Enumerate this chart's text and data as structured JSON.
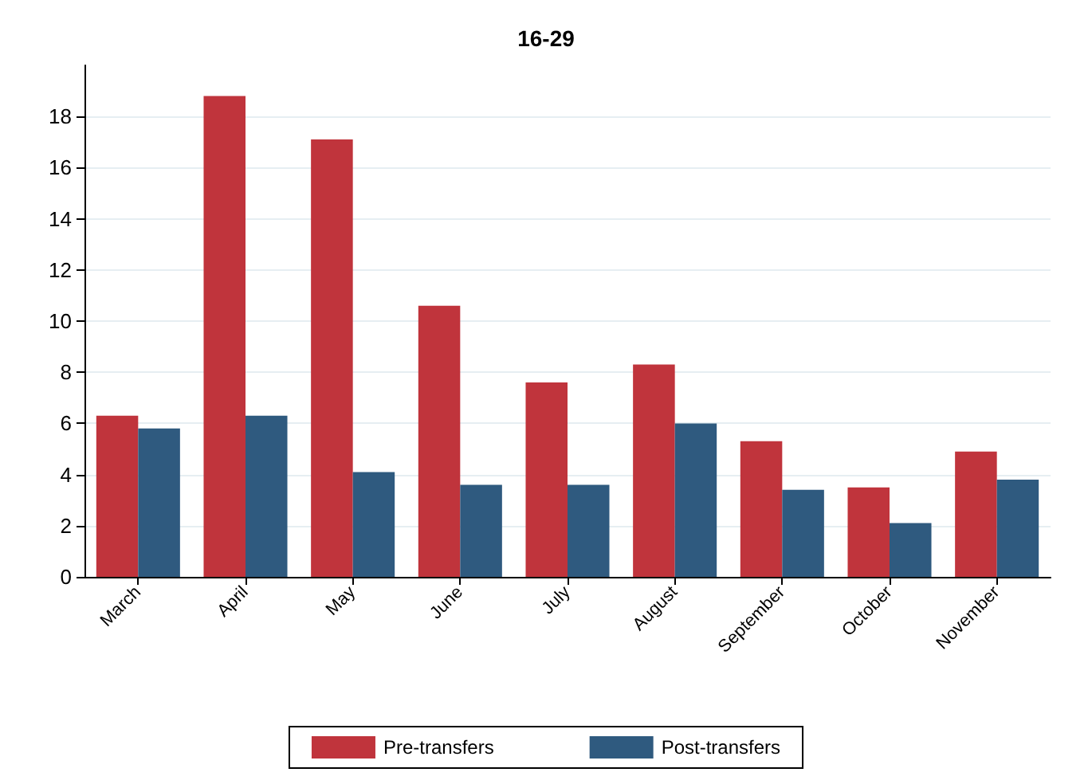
{
  "chart_data": {
    "type": "bar",
    "title": "16-29",
    "categories": [
      "March",
      "April",
      "May",
      "June",
      "July",
      "August",
      "September",
      "October",
      "November"
    ],
    "series": [
      {
        "name": "Pre-transfers",
        "color": "#c0343c",
        "values": [
          6.3,
          18.8,
          17.1,
          10.6,
          7.6,
          8.3,
          5.3,
          3.5,
          4.9
        ]
      },
      {
        "name": "Post-transfers",
        "color": "#2f5a7f",
        "values": [
          5.8,
          6.3,
          4.1,
          3.6,
          3.6,
          6.0,
          3.4,
          2.1,
          3.8
        ]
      }
    ],
    "ylim": [
      0,
      20
    ],
    "yticks": [
      0,
      2,
      4,
      6,
      8,
      10,
      12,
      14,
      16,
      18
    ],
    "grid": "y",
    "legend": "bottom"
  }
}
